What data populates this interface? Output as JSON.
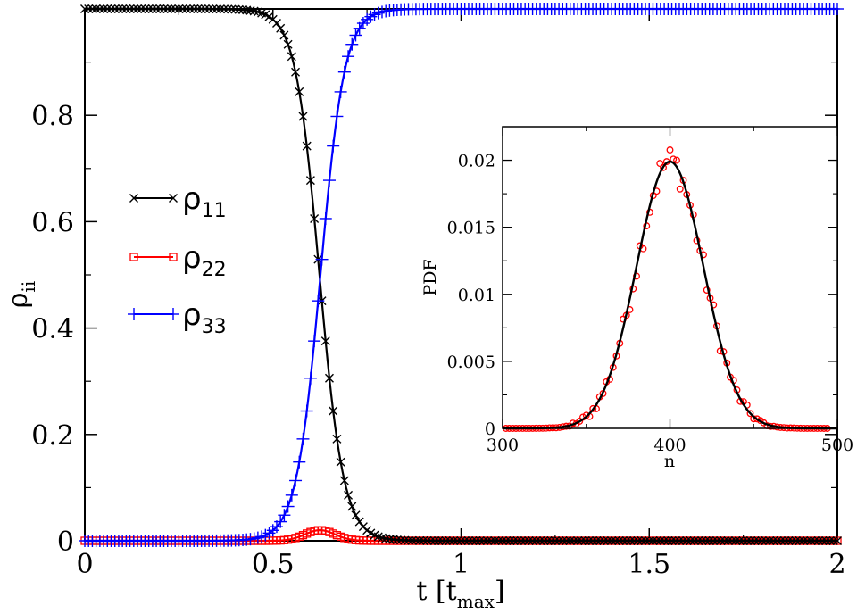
{
  "chart_data": [
    {
      "id": "main",
      "type": "line",
      "title": "",
      "xlabel": "t [t",
      "xlabel_sub": "max",
      "xlabel_close": "]",
      "ylabel": "ρ",
      "ylabel_sub": "ii",
      "xlim": [
        0,
        2
      ],
      "ylim": [
        0,
        1
      ],
      "xticks": [
        0,
        0.5,
        1,
        1.5,
        2
      ],
      "xtick_labels": [
        "0",
        "0.5",
        "1",
        "1.5",
        "2"
      ],
      "yticks": [
        0,
        0.2,
        0.4,
        0.6,
        0.8
      ],
      "ytick_labels": [
        "0",
        "0.2",
        "0.4",
        "0.6",
        "0.8"
      ],
      "legend_position": "center-left",
      "series": [
        {
          "name": "ρ",
          "sub": "11",
          "color": "#000000",
          "marker": "x",
          "model": "logistic-down",
          "params": {
            "center": 0.625,
            "width": 0.032
          },
          "x": [
            0,
            0.2,
            0.4,
            0.5,
            0.55,
            0.6,
            0.625,
            0.65,
            0.7,
            0.75,
            0.8,
            1.0,
            1.5,
            2.0
          ],
          "y": [
            1.0,
            1.0,
            1.0,
            0.98,
            0.9,
            0.68,
            0.5,
            0.32,
            0.12,
            0.03,
            0.007,
            0,
            0,
            0
          ]
        },
        {
          "name": "ρ",
          "sub": "22",
          "color": "#ff0000",
          "marker": "square",
          "model": "gaussian-bump",
          "params": {
            "center": 0.625,
            "width": 0.04,
            "height": 0.02
          },
          "x": [
            0,
            0.5,
            0.55,
            0.6,
            0.625,
            0.65,
            0.7,
            0.75,
            1.0,
            2.0
          ],
          "y": [
            0,
            0.001,
            0.006,
            0.016,
            0.02,
            0.016,
            0.006,
            0.001,
            0,
            0
          ]
        },
        {
          "name": "ρ",
          "sub": "33",
          "color": "#0000ff",
          "marker": "plus",
          "model": "logistic-up",
          "params": {
            "center": 0.625,
            "width": 0.032
          },
          "x": [
            0,
            0.2,
            0.4,
            0.5,
            0.55,
            0.6,
            0.625,
            0.65,
            0.7,
            0.75,
            0.8,
            1.0,
            1.5,
            2.0
          ],
          "y": [
            0,
            0,
            0,
            0.02,
            0.1,
            0.32,
            0.5,
            0.68,
            0.88,
            0.97,
            0.993,
            1.0,
            1.0,
            1.0
          ]
        }
      ]
    },
    {
      "id": "inset",
      "type": "scatter",
      "title": "",
      "xlabel": "n",
      "ylabel": "PDF",
      "xlim": [
        300,
        500
      ],
      "ylim": [
        0,
        0.0225
      ],
      "xticks": [
        300,
        400,
        500
      ],
      "xtick_labels": [
        "300",
        "400",
        "500"
      ],
      "yticks": [
        0,
        0.005,
        0.01,
        0.015,
        0.02
      ],
      "ytick_labels": [
        "0",
        "0.005",
        "0.01",
        "0.015",
        "0.02"
      ],
      "series": [
        {
          "name": "histogram",
          "color": "#ff0000",
          "marker": "circle",
          "x_start": 302,
          "x_end": 494,
          "x_step": 2,
          "model": "gaussian-noisy",
          "params": {
            "mean": 400,
            "sigma": 20,
            "peak": 0.0199
          }
        },
        {
          "name": "gaussian fit",
          "color": "#000000",
          "marker": "none",
          "model": "gaussian",
          "params": {
            "mean": 400,
            "sigma": 20,
            "peak": 0.0199
          }
        }
      ]
    }
  ]
}
